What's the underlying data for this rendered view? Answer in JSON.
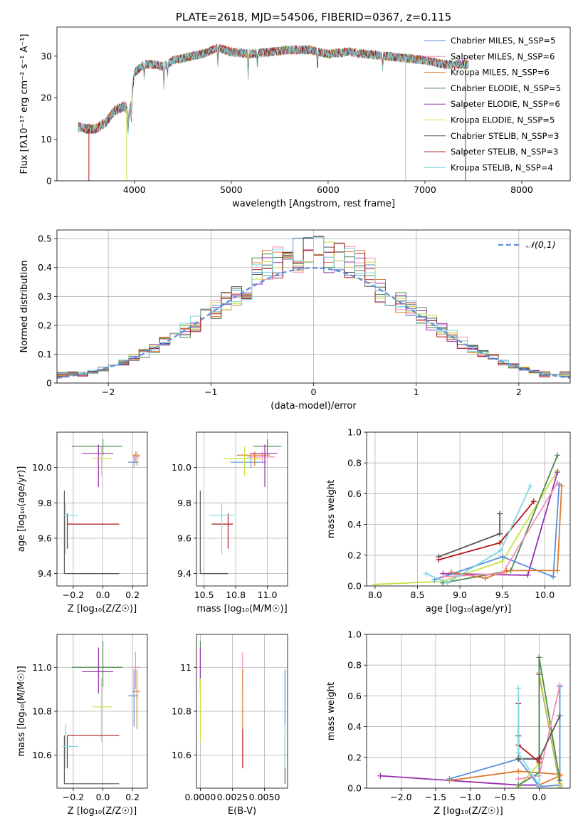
{
  "colors": {
    "chabrier_miles": "#5b8fd8",
    "salpeter_miles": "#f28fb8",
    "kroupa_miles": "#e07a2e",
    "chabrier_elodie": "#4f8a4f",
    "salpeter_elodie": "#9a30b0",
    "kroupa_elodie": "#c8e040",
    "chabrier_stelib": "#555555",
    "salpeter_stelib": "#b01818",
    "kroupa_stelib": "#7fd6e0"
  },
  "chart_data": [
    {
      "id": "spectrum",
      "type": "line",
      "title": "PLATE=2618, MJD=54506, FIBERID=0367, z=0.115",
      "xlabel": "wavelength [Angstrom, rest frame]",
      "ylabel": "Flux [fλ10⁻¹⁷ erg cm⁻² s⁻¹ A⁻¹]",
      "xlim": [
        3200,
        8500
      ],
      "ylim": [
        0,
        37
      ],
      "xticks": [
        4000,
        5000,
        6000,
        7000,
        8000
      ],
      "yticks": [
        0,
        10,
        20,
        30
      ],
      "legend_position": "top-right",
      "legend": [
        {
          "label": "Chabrier MILES, N_SSP=5",
          "color": "chabrier_miles"
        },
        {
          "label": "Salpeter MILES, N_SSP=6",
          "color": "salpeter_miles"
        },
        {
          "label": "Kroupa MILES, N_SSP=6",
          "color": "kroupa_miles"
        },
        {
          "label": "Chabrier ELODIE, N_SSP=5",
          "color": "chabrier_elodie"
        },
        {
          "label": "Salpeter ELODIE, N_SSP=6",
          "color": "salpeter_elodie"
        },
        {
          "label": "Kroupa ELODIE, N_SSP=5",
          "color": "kroupa_elodie"
        },
        {
          "label": "Chabrier STELIB, N_SSP=3",
          "color": "chabrier_stelib"
        },
        {
          "label": "Salpeter STELIB, N_SSP=3",
          "color": "salpeter_stelib"
        },
        {
          "label": "Kroupa STELIB, N_SSP=4",
          "color": "kroupa_stelib"
        }
      ],
      "continuum": {
        "x": [
          3420,
          3500,
          3600,
          3700,
          3800,
          3900,
          3950,
          4000,
          4100,
          4200,
          4300,
          4400,
          4500,
          4700,
          4860,
          5000,
          5200,
          5400,
          5600,
          5800,
          6000,
          6200,
          6400,
          6600,
          6800,
          7000,
          7200,
          7450
        ],
        "y": [
          13,
          12.5,
          12.5,
          14,
          17,
          18,
          16,
          26,
          28,
          28,
          27.5,
          29,
          29.5,
          30.5,
          32,
          31,
          30.5,
          31,
          31.5,
          31.5,
          30.5,
          31,
          30.5,
          30,
          29.5,
          29,
          28,
          28
        ]
      },
      "series_x_range": [
        3420,
        7450
      ]
    },
    {
      "id": "residuals",
      "type": "histogram",
      "xlabel": "(data-model)/error",
      "ylabel": "Normed distribution",
      "xlim": [
        -2.5,
        2.5
      ],
      "ylim": [
        0,
        0.53
      ],
      "xticks": [
        -2,
        -1,
        0,
        1,
        2
      ],
      "yticks": [
        0.0,
        0.1,
        0.2,
        0.3,
        0.4,
        0.5
      ],
      "legend_position": "top-right",
      "reference_label": "𝒩(0,1)",
      "bin_edges_range": [
        -2.5,
        2.5
      ],
      "bins": 50
    },
    {
      "id": "age_vs_Z",
      "type": "errorbar",
      "xlabel": "Z [log₁₀(Z/Z☉)]",
      "ylabel": "age  [log₁₀(age/yr)]",
      "xlim": [
        -0.31,
        0.3
      ],
      "ylim": [
        9.33,
        10.2
      ],
      "xticks": [
        -0.2,
        0.0,
        0.2
      ],
      "yticks": [
        9.4,
        9.6,
        9.8,
        10.0
      ],
      "points": [
        {
          "c": "chabrier_miles",
          "x": 0.21,
          "y": 10.03,
          "xe": [
            0.04,
            0.03
          ],
          "ye": [
            0.03,
            0.04
          ]
        },
        {
          "c": "salpeter_miles",
          "x": 0.22,
          "y": 10.06,
          "xe": [
            0.02,
            0.03
          ],
          "ye": [
            0.03,
            0.03
          ]
        },
        {
          "c": "kroupa_miles",
          "x": 0.23,
          "y": 10.07,
          "xe": [
            0.03,
            0.02
          ],
          "ye": [
            0.06,
            0.02
          ]
        },
        {
          "c": "chabrier_elodie",
          "x": 0.0,
          "y": 10.12,
          "xe": [
            0.21,
            0.13
          ],
          "ye": [
            0.05,
            0.04
          ]
        },
        {
          "c": "salpeter_elodie",
          "x": -0.03,
          "y": 10.08,
          "xe": [
            0.11,
            0.1
          ],
          "ye": [
            0.19,
            0.05
          ]
        },
        {
          "c": "kroupa_elodie",
          "x": -0.01,
          "y": 10.05,
          "xe": [
            0.06,
            0.07
          ],
          "ye": [
            0.1,
            0.07
          ]
        },
        {
          "c": "chabrier_stelib",
          "x": -0.26,
          "y": 9.4,
          "xe": [
            0.0,
            0.37
          ],
          "ye": [
            0.0,
            0.47
          ]
        },
        {
          "c": "salpeter_stelib",
          "x": -0.24,
          "y": 9.68,
          "xe": [
            0.0,
            0.35
          ],
          "ye": [
            0.14,
            0.06
          ]
        },
        {
          "c": "kroupa_stelib",
          "x": -0.25,
          "y": 9.73,
          "xe": [
            0.02,
            0.08
          ],
          "ye": [
            0.22,
            0.07
          ]
        }
      ]
    },
    {
      "id": "age_vs_mass",
      "type": "errorbar",
      "xlabel": "mass [log₁₀(M/M☉)]",
      "ylabel": "",
      "xlim": [
        10.44,
        11.16
      ],
      "ylim": [
        9.33,
        10.2
      ],
      "xticks": [
        10.5,
        10.75,
        11.0
      ],
      "yticks": [
        9.4,
        9.6,
        9.8,
        10.0
      ],
      "points": [
        {
          "c": "chabrier_miles",
          "x": 10.87,
          "y": 10.03,
          "xe": [
            0.16,
            0.12
          ],
          "ye": [
            0.03,
            0.04
          ]
        },
        {
          "c": "salpeter_miles",
          "x": 10.96,
          "y": 10.06,
          "xe": [
            0.12,
            0.1
          ],
          "ye": [
            0.03,
            0.03
          ]
        },
        {
          "c": "kroupa_miles",
          "x": 10.9,
          "y": 10.07,
          "xe": [
            0.14,
            0.12
          ],
          "ye": [
            0.06,
            0.02
          ]
        },
        {
          "c": "chabrier_elodie",
          "x": 11.0,
          "y": 10.12,
          "xe": [
            0.11,
            0.11
          ],
          "ye": [
            0.05,
            0.04
          ]
        },
        {
          "c": "salpeter_elodie",
          "x": 10.98,
          "y": 10.08,
          "xe": [
            0.12,
            0.1
          ],
          "ye": [
            0.19,
            0.05
          ]
        },
        {
          "c": "kroupa_elodie",
          "x": 10.82,
          "y": 10.05,
          "xe": [
            0.17,
            0.14
          ],
          "ye": [
            0.1,
            0.07
          ]
        },
        {
          "c": "chabrier_stelib",
          "x": 10.47,
          "y": 9.4,
          "xe": [
            0.0,
            0.22
          ],
          "ye": [
            0.0,
            0.47
          ]
        },
        {
          "c": "salpeter_stelib",
          "x": 10.69,
          "y": 9.68,
          "xe": [
            0.13,
            0.04
          ],
          "ye": [
            0.14,
            0.06
          ]
        },
        {
          "c": "kroupa_stelib",
          "x": 10.64,
          "y": 9.73,
          "xe": [
            0.1,
            0.1
          ],
          "ye": [
            0.22,
            0.07
          ]
        }
      ]
    },
    {
      "id": "massweight_vs_age",
      "type": "line",
      "xlabel": "age  [log₁₀(age/yr)]",
      "ylabel": "mass weight",
      "xlim": [
        7.9,
        10.3
      ],
      "ylim": [
        0,
        1.0
      ],
      "xticks": [
        8.0,
        8.5,
        9.0,
        9.5,
        10.0
      ],
      "yticks": [
        0.0,
        0.2,
        0.4,
        0.6,
        0.8,
        1.0
      ],
      "series": [
        {
          "c": "kroupa_elodie",
          "x": [
            8.0,
            8.8,
            9.5,
            10.15
          ],
          "y": [
            0.01,
            0.03,
            0.16,
            0.75
          ]
        },
        {
          "c": "chabrier_elodie",
          "x": [
            8.8,
            9.6,
            10.15
          ],
          "y": [
            0.02,
            0.1,
            0.85
          ]
        },
        {
          "c": "salpeter_elodie",
          "x": [
            8.8,
            9.8,
            10.15
          ],
          "y": [
            0.08,
            0.07,
            0.74
          ]
        },
        {
          "c": "chabrier_miles",
          "x": [
            8.7,
            9.5,
            10.1,
            10.17
          ],
          "y": [
            0.04,
            0.19,
            0.06,
            0.66
          ]
        },
        {
          "c": "kroupa_miles",
          "x": [
            8.9,
            9.3,
            9.55,
            10.15,
            10.2
          ],
          "y": [
            0.09,
            0.05,
            0.1,
            0.1,
            0.65
          ]
        },
        {
          "c": "salpeter_miles",
          "x": [
            8.8,
            9.5,
            10.15
          ],
          "y": [
            0.06,
            0.08,
            0.67
          ]
        },
        {
          "c": "chabrier_stelib",
          "x": [
            8.75,
            9.47,
            9.47
          ],
          "y": [
            0.19,
            0.34,
            0.47
          ]
        },
        {
          "c": "salpeter_stelib",
          "x": [
            8.75,
            9.47,
            9.87
          ],
          "y": [
            0.17,
            0.28,
            0.55
          ]
        },
        {
          "c": "kroupa_stelib",
          "x": [
            8.6,
            8.85,
            9.48,
            9.83
          ],
          "y": [
            0.08,
            0.02,
            0.23,
            0.65
          ]
        }
      ]
    },
    {
      "id": "mass_vs_Z",
      "type": "errorbar",
      "xlabel": "Z [log₁₀(Z/Z☉)]",
      "ylabel": "mass [log₁₀(M/M☉)]",
      "xlim": [
        -0.31,
        0.3
      ],
      "ylim": [
        10.45,
        11.15
      ],
      "xticks": [
        -0.2,
        0.0,
        0.2
      ],
      "yticks": [
        10.6,
        10.8,
        11.0
      ],
      "points": [
        {
          "c": "chabrier_miles",
          "x": 0.21,
          "y": 10.87,
          "xe": [
            0.04,
            0.03
          ],
          "ye": [
            0.14,
            0.12
          ]
        },
        {
          "c": "salpeter_miles",
          "x": 0.22,
          "y": 11.0,
          "xe": [
            0.02,
            0.03
          ],
          "ye": [
            0.1,
            0.07
          ]
        },
        {
          "c": "kroupa_miles",
          "x": 0.23,
          "y": 10.89,
          "xe": [
            0.03,
            0.02
          ],
          "ye": [
            0.17,
            0.1
          ]
        },
        {
          "c": "chabrier_elodie",
          "x": 0.0,
          "y": 11.0,
          "xe": [
            0.21,
            0.13
          ],
          "ye": [
            0.09,
            0.12
          ]
        },
        {
          "c": "salpeter_elodie",
          "x": -0.03,
          "y": 10.98,
          "xe": [
            0.11,
            0.1
          ],
          "ye": [
            0.1,
            0.11
          ]
        },
        {
          "c": "kroupa_elodie",
          "x": -0.01,
          "y": 10.82,
          "xe": [
            0.06,
            0.07
          ],
          "ye": [
            0.16,
            0.13
          ]
        },
        {
          "c": "chabrier_stelib",
          "x": -0.26,
          "y": 10.47,
          "xe": [
            0.0,
            0.37
          ],
          "ye": [
            0.0,
            0.22
          ]
        },
        {
          "c": "salpeter_stelib",
          "x": -0.24,
          "y": 10.69,
          "xe": [
            0.0,
            0.35
          ],
          "ye": [
            0.15,
            0.0
          ]
        },
        {
          "c": "kroupa_stelib",
          "x": -0.25,
          "y": 10.64,
          "xe": [
            0.02,
            0.08
          ],
          "ye": [
            0.1,
            0.1
          ]
        }
      ]
    },
    {
      "id": "mass_vs_ebv",
      "type": "errorbar",
      "xlabel": "E(B-V)",
      "ylabel": "",
      "xlim": [
        -0.0003,
        0.0068
      ],
      "ylim": [
        10.45,
        11.15
      ],
      "xticks": [
        0.0,
        0.0025,
        0.005
      ],
      "yticks": [
        10.6,
        10.8,
        11.0
      ],
      "xticklabels": [
        "0.0000",
        "0.0025",
        "0.0050"
      ],
      "points": [
        {
          "c": "chabrier_miles",
          "x": 0.0066,
          "y": 10.87,
          "xe": [
            0,
            0
          ],
          "ye": [
            0.14,
            0.12
          ]
        },
        {
          "c": "salpeter_miles",
          "x": 0.0033,
          "y": 11.0,
          "xe": [
            0,
            0
          ],
          "ye": [
            0.1,
            0.07
          ]
        },
        {
          "c": "kroupa_miles",
          "x": 0.0033,
          "y": 10.89,
          "xe": [
            0,
            0
          ],
          "ye": [
            0.17,
            0.1
          ]
        },
        {
          "c": "chabrier_elodie",
          "x": 0.0,
          "y": 11.0,
          "xe": [
            0,
            0
          ],
          "ye": [
            0.09,
            0.12
          ]
        },
        {
          "c": "salpeter_elodie",
          "x": 0.0,
          "y": 10.98,
          "xe": [
            0,
            0
          ],
          "ye": [
            0.1,
            0.11
          ]
        },
        {
          "c": "kroupa_elodie",
          "x": 0.0,
          "y": 10.82,
          "xe": [
            0,
            0
          ],
          "ye": [
            0.16,
            0.13
          ]
        },
        {
          "c": "chabrier_stelib",
          "x": 0.0066,
          "y": 10.47,
          "xe": [
            0,
            0
          ],
          "ye": [
            0.0,
            0.22
          ]
        },
        {
          "c": "salpeter_stelib",
          "x": 0.0033,
          "y": 10.69,
          "xe": [
            0,
            0
          ],
          "ye": [
            0.15,
            0.03
          ]
        },
        {
          "c": "kroupa_stelib",
          "x": 0.0066,
          "y": 10.64,
          "xe": [
            0,
            0
          ],
          "ye": [
            0.1,
            0.1
          ]
        }
      ]
    },
    {
      "id": "massweight_vs_Z",
      "type": "line",
      "xlabel": "Z [log₁₀(Z/Z☉)]",
      "ylabel": "mass weight",
      "xlim": [
        -2.5,
        0.45
      ],
      "ylim": [
        0,
        1.0
      ],
      "xticks": [
        -2.0,
        -1.5,
        -1.0,
        -0.5,
        0.0
      ],
      "yticks": [
        0.0,
        0.2,
        0.4,
        0.6,
        0.8,
        1.0
      ],
      "series": [
        {
          "c": "salpeter_elodie",
          "x": [
            -2.3,
            -0.3,
            0.0,
            0.0,
            0.3,
            0.3
          ],
          "y": [
            0.08,
            0.02,
            0.02,
            0.74,
            0.02,
            0.0
          ]
        },
        {
          "c": "chabrier_miles",
          "x": [
            -1.3,
            -0.3,
            0.0,
            0.3,
            0.3
          ],
          "y": [
            0.06,
            0.19,
            0.01,
            0.02,
            0.66
          ]
        },
        {
          "c": "kroupa_miles",
          "x": [
            -1.3,
            -0.3,
            0.3,
            0.3,
            0.0
          ],
          "y": [
            0.05,
            0.11,
            0.09,
            0.08,
            0.02
          ]
        },
        {
          "c": "kroupa_elodie",
          "x": [
            -0.3,
            0.0,
            0.0,
            0.3,
            0.3
          ],
          "y": [
            0.01,
            0.16,
            0.75,
            0.03,
            0.01
          ]
        },
        {
          "c": "chabrier_elodie",
          "x": [
            -0.3,
            0.0,
            0.0,
            0.3
          ],
          "y": [
            0.02,
            0.1,
            0.85,
            0.05
          ]
        },
        {
          "c": "salpeter_miles",
          "x": [
            -0.3,
            0.0,
            0.3
          ],
          "y": [
            0.06,
            0.08,
            0.67
          ]
        },
        {
          "c": "chabrier_stelib",
          "x": [
            -0.3,
            -0.3,
            0.0,
            0.3
          ],
          "y": [
            0.34,
            0.19,
            0.19,
            0.47
          ]
        },
        {
          "c": "salpeter_stelib",
          "x": [
            -0.3,
            -0.3,
            0.0,
            0.0
          ],
          "y": [
            0.55,
            0.28,
            0.17,
            0.2
          ]
        },
        {
          "c": "kroupa_stelib",
          "x": [
            -0.3,
            -0.3,
            0.0,
            0.0
          ],
          "y": [
            0.65,
            0.23,
            0.02,
            0.08
          ]
        }
      ]
    }
  ]
}
